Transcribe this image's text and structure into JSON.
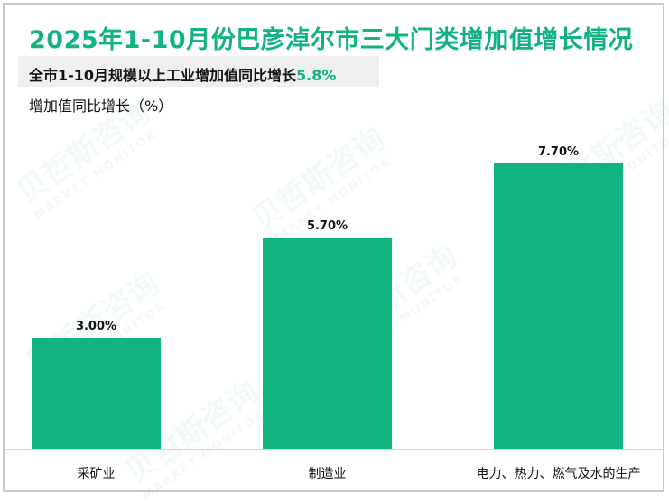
{
  "title": "2025年1-10月份巴彦淖尔市三大门类增加值增长情况",
  "subtitle": {
    "prefix": "全市1-10月规模以上工业增加值同比增长",
    "highlight": "5.8%"
  },
  "y_axis_label": "增加值同比增长（%）",
  "watermark": {
    "cn": "贝哲斯咨询",
    "en": "MARKET MONITOR"
  },
  "colors": {
    "accent": "#10b281",
    "bar": "#10b481",
    "subtitle_bg": "#efefef"
  },
  "chart_data": {
    "type": "bar",
    "title": "2025年1-10月份巴彦淖尔市三大门类增加值增长情况",
    "subtitle": "全市1-10月规模以上工业增加值同比增长5.8%",
    "xlabel": "",
    "ylabel": "增加值同比增长（%）",
    "categories": [
      "采矿业",
      "制造业",
      "电力、热力、燃气及水的生产"
    ],
    "values": [
      3.0,
      5.7,
      7.7
    ],
    "data_labels": [
      "3.00%",
      "5.70%",
      "7.70%"
    ],
    "grid": false,
    "legend": "none"
  }
}
